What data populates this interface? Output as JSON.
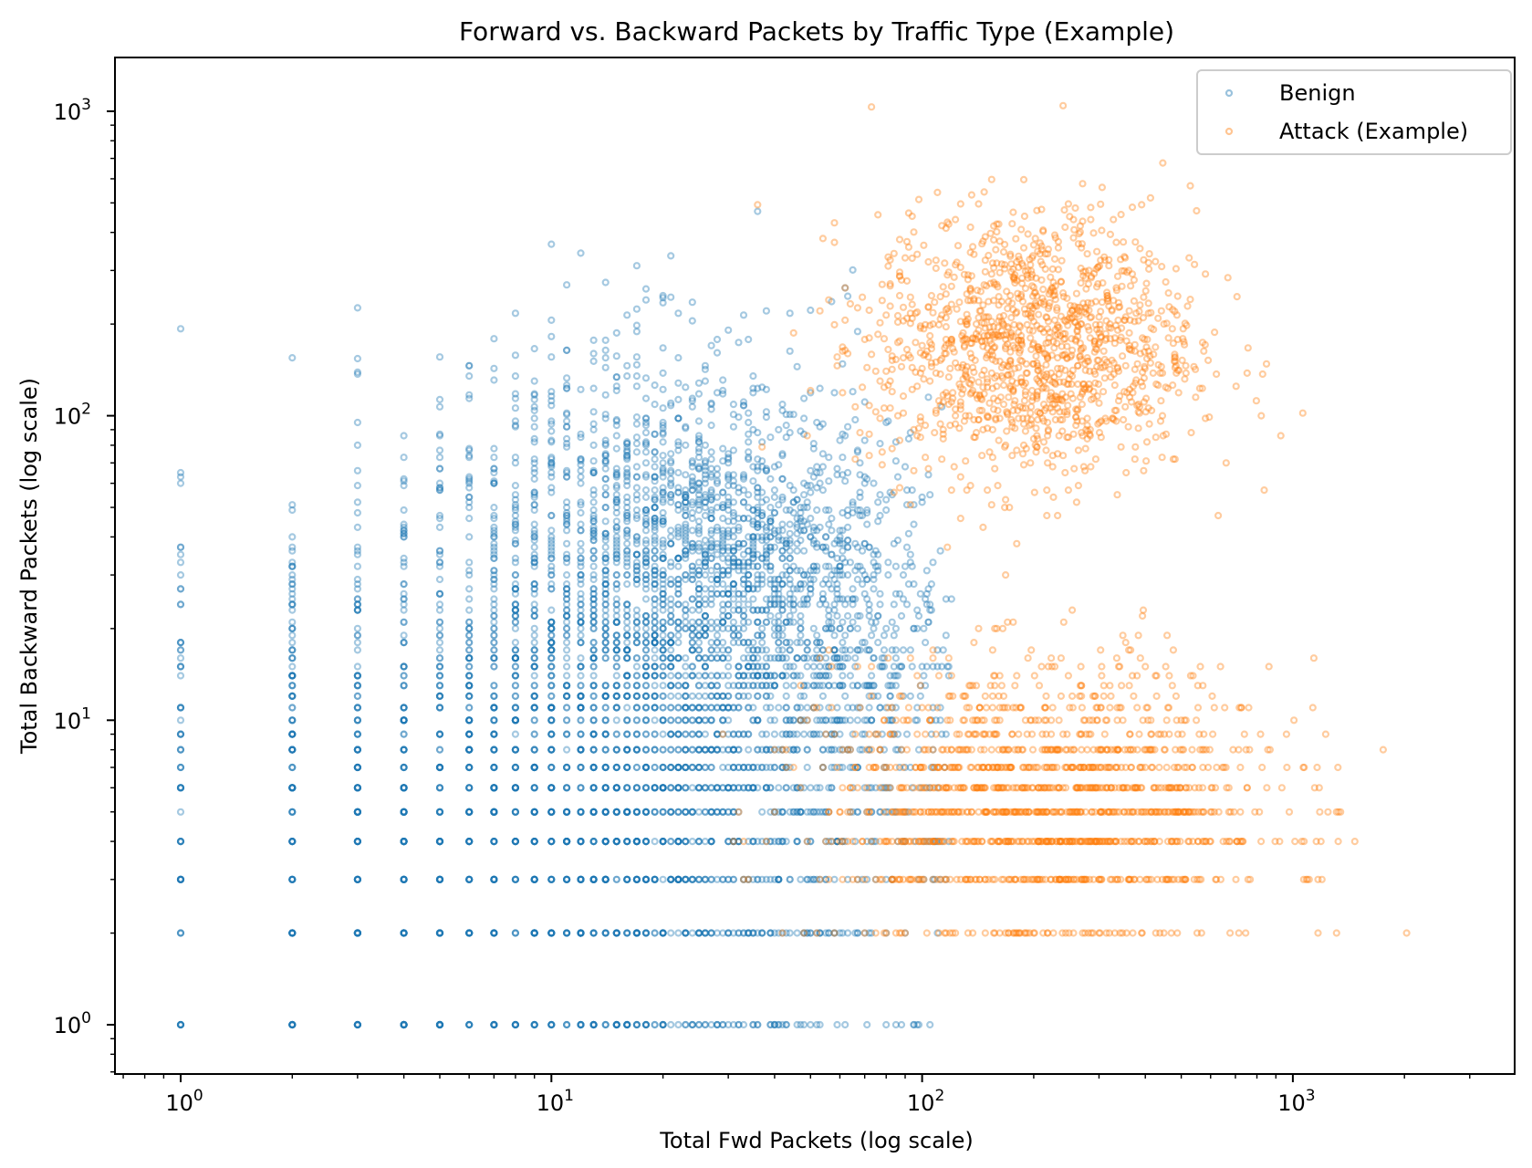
{
  "chart_data": {
    "type": "scatter",
    "title": "Forward vs. Backward Packets by Traffic Type (Example)",
    "xlabel": "Total Fwd Packets (log scale)",
    "ylabel": "Total Backward Packets (log scale)",
    "xscale": "log",
    "yscale": "log",
    "xlim": [
      0.7,
      4500
    ],
    "ylim": [
      0.7,
      1600
    ],
    "xticks": [
      {
        "base": "10",
        "exp": "0",
        "value": 1
      },
      {
        "base": "10",
        "exp": "1",
        "value": 10
      },
      {
        "base": "10",
        "exp": "2",
        "value": 100
      },
      {
        "base": "10",
        "exp": "3",
        "value": 1000
      }
    ],
    "yticks": [
      {
        "base": "10",
        "exp": "0",
        "value": 1
      },
      {
        "base": "10",
        "exp": "1",
        "value": 10
      },
      {
        "base": "10",
        "exp": "2",
        "value": 100
      },
      {
        "base": "10",
        "exp": "3",
        "value": 1000
      }
    ],
    "grid": false,
    "legend_position": "upper right",
    "series": [
      {
        "name": "Benign",
        "color": "#1f77b4",
        "alpha": 0.4,
        "marker": "o",
        "description": "Integer-valued flows; dense vertical columns at x=1..30, concentrated at low y (2-15) with tail up to ~300; cloud centered near x~30, y~30",
        "approx_count": 5000,
        "x_range": [
          1,
          110
        ],
        "y_range": [
          1,
          560
        ],
        "center": {
          "x": 30,
          "y": 30
        }
      },
      {
        "name": "Attack (Example)",
        "color": "#ff7f0e",
        "alpha": 0.4,
        "marker": "o",
        "description": "Two clusters: a cloud centered near x~200, y~170 (range x 30-1000, y 20-1050), and horizontal bands at y=2..15 spanning x 50-2800",
        "approx_count": 2500,
        "x_range": [
          29,
          2800
        ],
        "y_range": [
          1,
          1050
        ],
        "center": {
          "x": 200,
          "y": 170
        }
      }
    ]
  },
  "legend": {
    "items": [
      {
        "label": "Benign",
        "color": "#1f77b4"
      },
      {
        "label": "Attack (Example)",
        "color": "#ff7f0e"
      }
    ]
  }
}
